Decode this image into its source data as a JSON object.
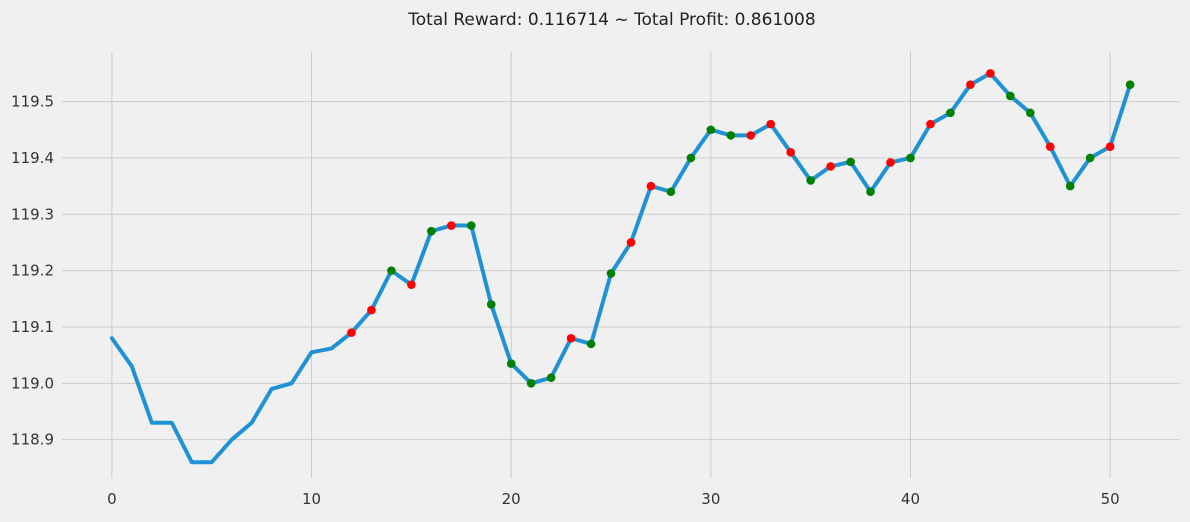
{
  "chart_data": {
    "type": "line",
    "title": "Total Reward: 0.116714 ~ Total Profit: 0.861008",
    "xlabel": "",
    "ylabel": "",
    "xlim": [
      -2.5,
      53.5
    ],
    "ylim": [
      118.832,
      119.588
    ],
    "x_ticks": [
      0,
      10,
      20,
      30,
      40,
      50
    ],
    "y_ticks": [
      118.9,
      119.0,
      119.1,
      119.2,
      119.3,
      119.4,
      119.5
    ],
    "grid": true,
    "legend": "none",
    "colors": {
      "line": "#1f92d6",
      "buy": "#ff0000",
      "sell": "#008000",
      "grid": "#cbcbcb",
      "background": "#f0f0f0"
    },
    "series": [
      {
        "x": [
          0,
          1,
          2,
          3,
          4,
          5,
          6,
          7,
          8,
          9,
          10,
          11,
          12,
          13,
          14,
          15,
          16,
          17,
          18,
          19,
          20,
          21,
          22,
          23,
          24,
          25,
          26,
          27,
          28,
          29,
          30,
          31,
          32,
          33,
          34,
          35,
          36,
          37,
          38,
          39,
          40,
          41,
          42,
          43,
          44,
          45,
          46,
          47,
          48,
          49,
          50,
          51
        ],
        "values": [
          119.08,
          119.03,
          118.93,
          118.93,
          118.86,
          118.86,
          118.9,
          118.93,
          118.99,
          119.0,
          119.055,
          119.062,
          119.09,
          119.13,
          119.2,
          119.175,
          119.27,
          119.28,
          119.28,
          119.14,
          119.035,
          119.0,
          119.01,
          119.08,
          119.07,
          119.195,
          119.25,
          119.35,
          119.34,
          119.4,
          119.45,
          119.44,
          119.44,
          119.46,
          119.41,
          119.36,
          119.385,
          119.393,
          119.34,
          119.392,
          119.4,
          119.46,
          119.48,
          119.53,
          119.55,
          119.51,
          119.48,
          119.42,
          119.35,
          119.4,
          119.42,
          119.53
        ]
      }
    ],
    "markers_red": {
      "x": [
        12,
        13,
        15,
        17,
        23,
        26,
        27,
        32,
        33,
        34,
        36,
        39,
        41,
        43,
        44,
        47,
        50
      ],
      "values": [
        119.09,
        119.13,
        119.175,
        119.28,
        119.08,
        119.25,
        119.35,
        119.44,
        119.46,
        119.41,
        119.385,
        119.392,
        119.46,
        119.53,
        119.55,
        119.42,
        119.42
      ]
    },
    "markers_green": {
      "x": [
        14,
        16,
        18,
        19,
        20,
        21,
        22,
        24,
        25,
        28,
        29,
        30,
        31,
        35,
        37,
        38,
        40,
        42,
        45,
        46,
        48,
        49,
        51
      ],
      "values": [
        119.2,
        119.27,
        119.28,
        119.14,
        119.035,
        119.0,
        119.01,
        119.07,
        119.195,
        119.34,
        119.4,
        119.45,
        119.44,
        119.36,
        119.393,
        119.34,
        119.4,
        119.48,
        119.51,
        119.48,
        119.35,
        119.4,
        119.53
      ]
    }
  }
}
